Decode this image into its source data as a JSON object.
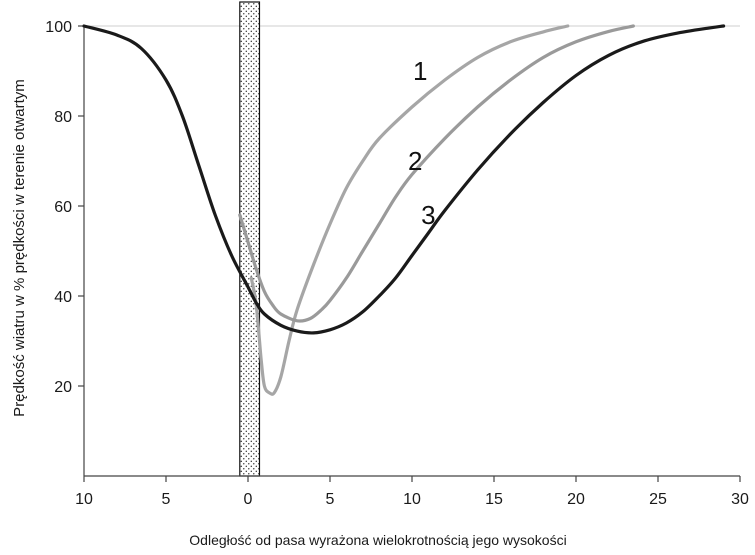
{
  "chart_data": {
    "type": "line",
    "title": "",
    "xlabel": "Odległość od pasa wyrażona wielokrotnością jego wysokości",
    "ylabel": "Prędkość wiatru w % prędkości w terenie otwartym",
    "xlim": [
      -10,
      30
    ],
    "ylim": [
      0,
      100
    ],
    "x_ticks": [
      -10,
      -5,
      0,
      5,
      10,
      15,
      20,
      25,
      30
    ],
    "x_tick_labels": [
      "10",
      "5",
      "0",
      "5",
      "10",
      "15",
      "20",
      "25",
      "30"
    ],
    "y_ticks": [
      20,
      40,
      60,
      80,
      100
    ],
    "y_tick_labels": [
      "20",
      "40",
      "60",
      "80",
      "100"
    ],
    "grid": false,
    "legend": "none",
    "barrier": {
      "x_start": -0.5,
      "x_end": 0.7
    },
    "series": [
      {
        "name": "1",
        "label_at": [
          10.5,
          88
        ],
        "color": "#a6a6a6",
        "points": [
          [
            0.2,
            44
          ],
          [
            0.5,
            38
          ],
          [
            0.8,
            26
          ],
          [
            1.0,
            20
          ],
          [
            1.3,
            18.5
          ],
          [
            1.6,
            18.5
          ],
          [
            2.0,
            22
          ],
          [
            2.5,
            30
          ],
          [
            3.0,
            37
          ],
          [
            4.0,
            47
          ],
          [
            5.0,
            56
          ],
          [
            6.0,
            64
          ],
          [
            7.0,
            70
          ],
          [
            8.0,
            75
          ],
          [
            10.0,
            82
          ],
          [
            12.0,
            88
          ],
          [
            14.0,
            93
          ],
          [
            16.0,
            96.5
          ],
          [
            18.0,
            98.7
          ],
          [
            19.5,
            100
          ]
        ]
      },
      {
        "name": "2",
        "label_at": [
          10.2,
          68
        ],
        "color": "#9a9a9a",
        "points": [
          [
            -0.5,
            58
          ],
          [
            0.0,
            52
          ],
          [
            0.5,
            46
          ],
          [
            1.0,
            41
          ],
          [
            1.5,
            38
          ],
          [
            2.0,
            36
          ],
          [
            3.0,
            34.5
          ],
          [
            3.8,
            35
          ],
          [
            4.5,
            37
          ],
          [
            5.0,
            39
          ],
          [
            6.0,
            44
          ],
          [
            7.0,
            50
          ],
          [
            8.0,
            56
          ],
          [
            9.0,
            62
          ],
          [
            10.0,
            67
          ],
          [
            12.0,
            75
          ],
          [
            14.0,
            82
          ],
          [
            16.0,
            88
          ],
          [
            18.0,
            93
          ],
          [
            20.0,
            96.5
          ],
          [
            22.0,
            98.8
          ],
          [
            23.5,
            100
          ]
        ]
      },
      {
        "name": "3",
        "label_at": [
          11.0,
          56
        ],
        "color": "#1a1a1a",
        "points": [
          [
            -10.0,
            100
          ],
          [
            -8.0,
            98
          ],
          [
            -6.5,
            95
          ],
          [
            -5.0,
            88
          ],
          [
            -4.0,
            80
          ],
          [
            -3.0,
            69
          ],
          [
            -2.0,
            58
          ],
          [
            -1.0,
            49
          ],
          [
            0.0,
            42
          ],
          [
            0.5,
            38.5
          ],
          [
            1.0,
            36
          ],
          [
            2.0,
            33.5
          ],
          [
            3.0,
            32.2
          ],
          [
            4.0,
            31.8
          ],
          [
            5.0,
            32.5
          ],
          [
            6.0,
            34
          ],
          [
            7.0,
            36.5
          ],
          [
            8.0,
            40
          ],
          [
            9.0,
            44
          ],
          [
            10.0,
            49
          ],
          [
            11.0,
            54
          ],
          [
            12.0,
            59
          ],
          [
            14.0,
            68
          ],
          [
            16.0,
            76
          ],
          [
            18.0,
            83
          ],
          [
            20.0,
            89
          ],
          [
            22.0,
            93.5
          ],
          [
            24.0,
            96.5
          ],
          [
            26.0,
            98.3
          ],
          [
            28.0,
            99.5
          ],
          [
            29.0,
            100
          ]
        ]
      }
    ]
  }
}
